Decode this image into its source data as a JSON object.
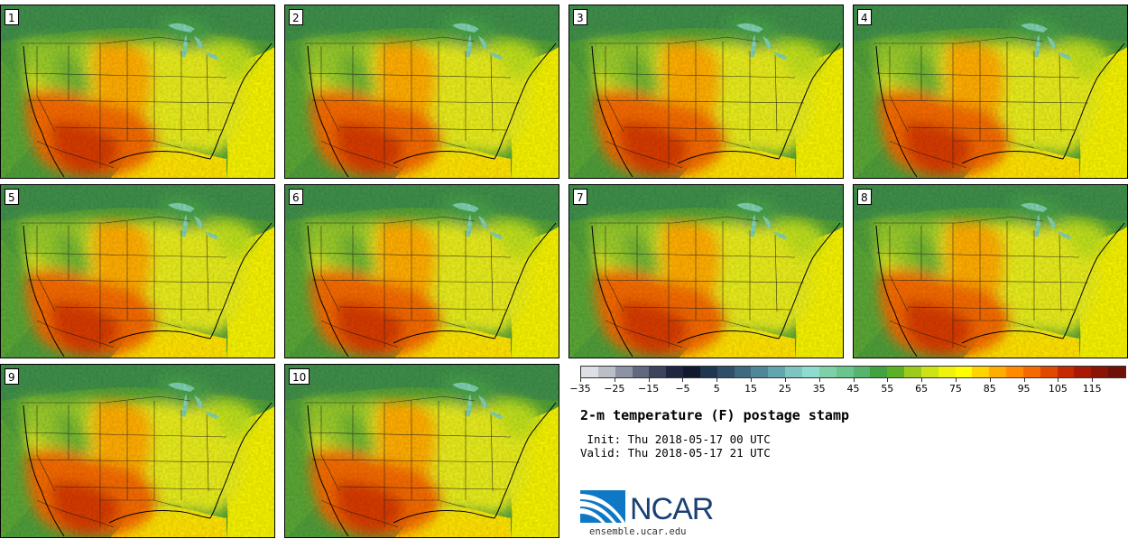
{
  "panels": [
    {
      "label": "1"
    },
    {
      "label": "2"
    },
    {
      "label": "3"
    },
    {
      "label": "4"
    },
    {
      "label": "5"
    },
    {
      "label": "6"
    },
    {
      "label": "7"
    },
    {
      "label": "8"
    },
    {
      "label": "9"
    },
    {
      "label": "10"
    }
  ],
  "colorbar": {
    "colors": [
      "#dcdfe3",
      "#b9bec7",
      "#8d93a3",
      "#62697f",
      "#3c435c",
      "#1f2640",
      "#12182e",
      "#1f3550",
      "#2f4f68",
      "#3e6a80",
      "#4f8798",
      "#63a5ae",
      "#7dc4c2",
      "#8edccf",
      "#7fd0a8",
      "#6ac48d",
      "#55b46d",
      "#42a140",
      "#5cb028",
      "#9ccb1c",
      "#cde315",
      "#eef20d",
      "#ffff00",
      "#ffd400",
      "#ffad00",
      "#ff8a00",
      "#f56a00",
      "#e04a00",
      "#c62a00",
      "#a81a05",
      "#8a1506",
      "#6e1209"
    ],
    "tick_labels": [
      "−35",
      "−25",
      "−15",
      "−5",
      "5",
      "15",
      "25",
      "35",
      "45",
      "55",
      "65",
      "75",
      "85",
      "95",
      "105",
      "115"
    ],
    "min": -35,
    "max": 125,
    "step": 10
  },
  "title": "2-m temperature (F) postage stamp",
  "init_line": " Init: Thu 2018-05-17 00 UTC",
  "valid_line": "Valid: Thu 2018-05-17 21 UTC",
  "logo": {
    "name": "NCAR",
    "url": "ensemble.ucar.edu"
  }
}
